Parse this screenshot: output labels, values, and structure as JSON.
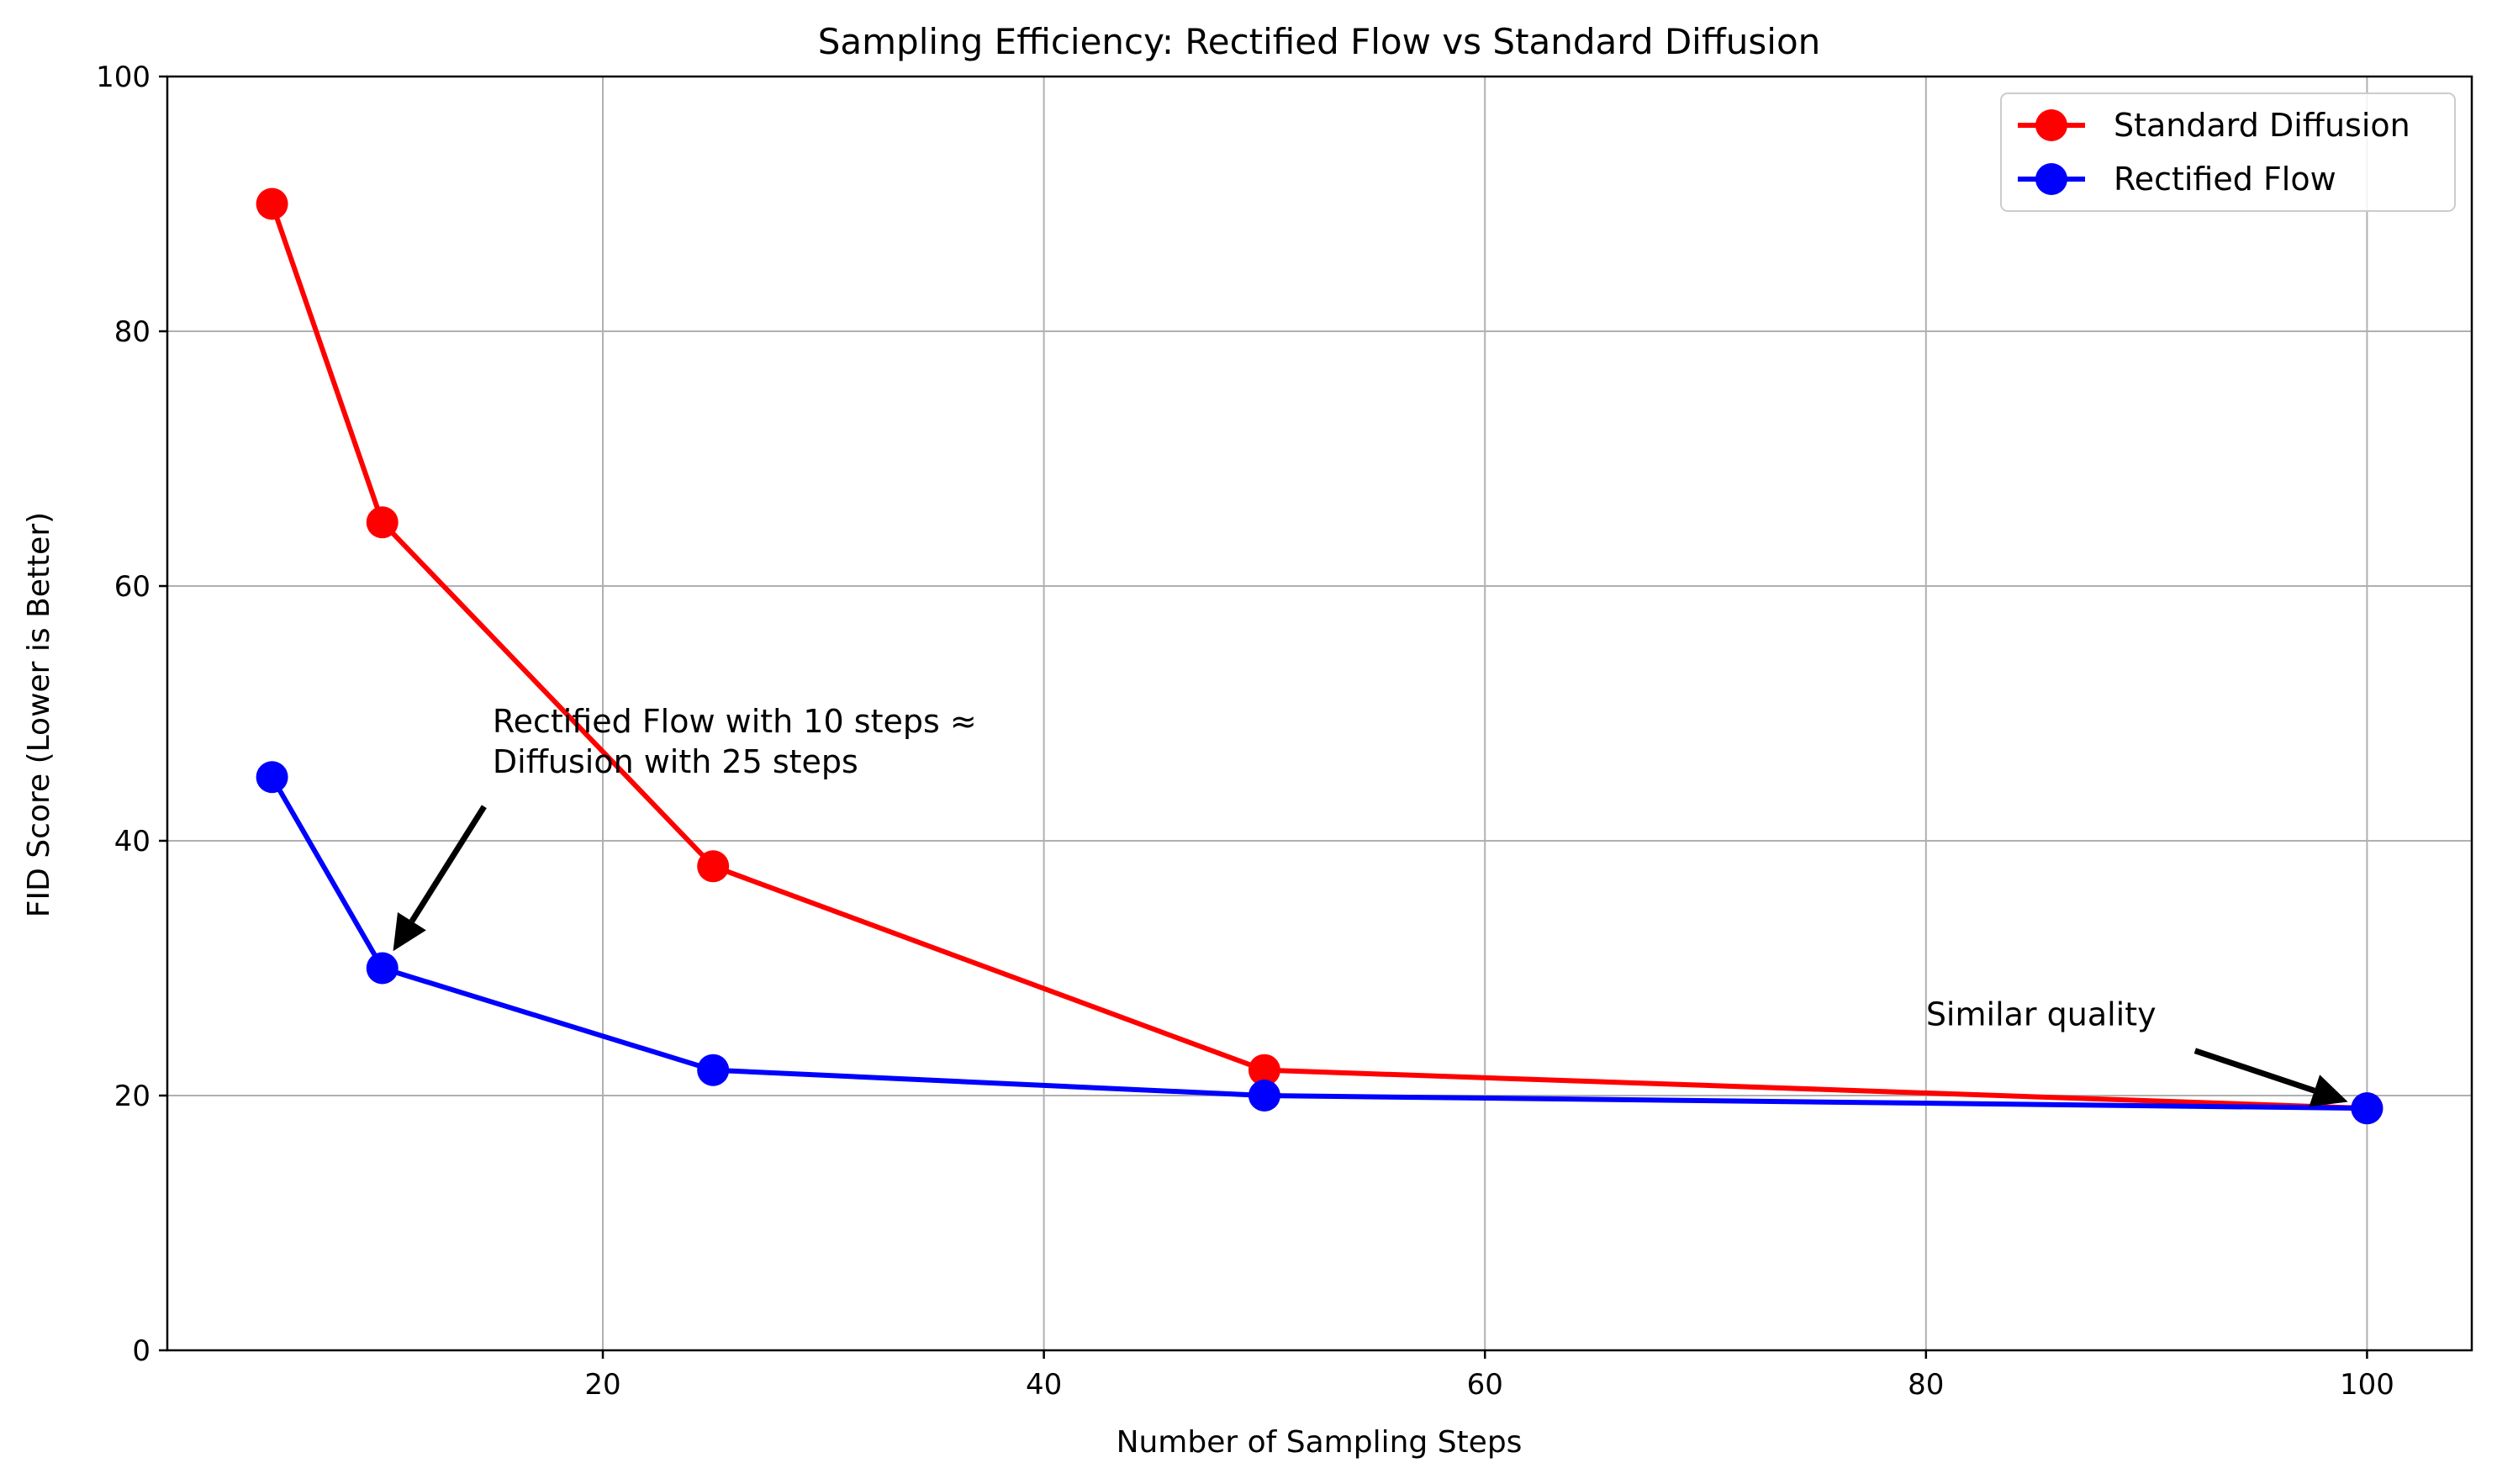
{
  "chart_data": {
    "type": "line",
    "title": "Sampling Efficiency: Rectified Flow vs Standard Diffusion",
    "xlabel": "Number of Sampling Steps",
    "ylabel": "FID Score (Lower is Better)",
    "xlim": [
      0.25,
      104.75
    ],
    "ylim": [
      0,
      100
    ],
    "xticks": [
      20,
      40,
      60,
      80,
      100
    ],
    "yticks": [
      0,
      20,
      40,
      60,
      80,
      100
    ],
    "grid": true,
    "legend_position": "top-right",
    "x": [
      5,
      10,
      25,
      50,
      100
    ],
    "series": [
      {
        "name": "Standard Diffusion",
        "color": "#ff0000",
        "values": [
          90,
          65,
          38,
          22,
          19
        ]
      },
      {
        "name": "Rectified Flow",
        "color": "#0000ff",
        "values": [
          45,
          30,
          22,
          20,
          19
        ]
      }
    ],
    "annotations": [
      {
        "lines": [
          "Rectified Flow with 10 steps ≈",
          "Diffusion with 25 steps"
        ],
        "text_at": [
          15,
          48.5
        ],
        "arrow_to": [
          10,
          30
        ]
      },
      {
        "lines": [
          "Similar quality"
        ],
        "text_at": [
          80,
          25.5
        ],
        "arrow_to": [
          100,
          19
        ]
      }
    ]
  }
}
